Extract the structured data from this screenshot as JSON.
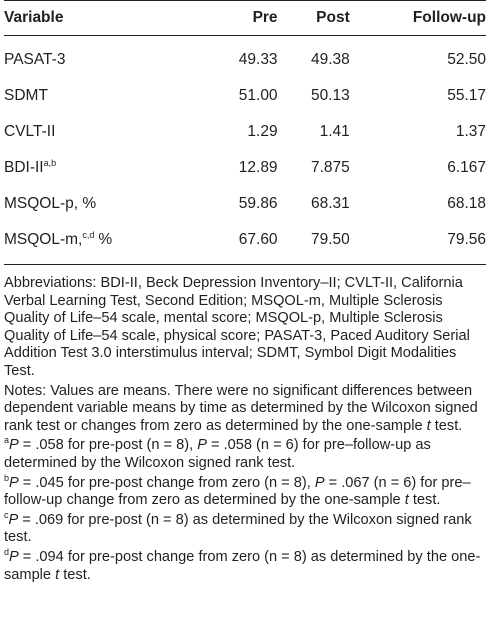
{
  "table": {
    "header": [
      "Variable",
      "Pre",
      "Post",
      "Follow-up"
    ],
    "rows": [
      {
        "variable": "PASAT-3",
        "values": [
          "49.33",
          "49.38",
          "52.50"
        ]
      },
      {
        "variable": "SDMT",
        "values": [
          "51.00",
          "50.13",
          "55.17"
        ]
      },
      {
        "variable": "CVLT-II",
        "values": [
          "1.29",
          "1.41",
          "1.37"
        ]
      },
      {
        "variable": "BDI-II",
        "sup": "a,b",
        "values": [
          "12.89",
          "7.875",
          "6.167"
        ]
      },
      {
        "variable": "MSQOL-p, %",
        "values": [
          "59.86",
          "68.31",
          "68.18"
        ]
      },
      {
        "variable": "MSQOL-m,",
        "sup": "c,d",
        "suffix": "%",
        "values": [
          "67.60",
          "79.50",
          "79.56"
        ]
      }
    ]
  },
  "footnotes": [
    {
      "segments": [
        "Abbreviations: BDI-II, Beck Depression Inventory–II; CVLT-II, California Verbal Learning Test, Second Edition; MSQOL-m, Multiple Sclerosis Quality of Life–54 scale, mental score; MSQOL-p, Multiple Sclerosis Quality of Life–54 scale, physical score; PASAT-3, Paced Auditory Serial Addition Test 3.0 interstimulus interval; SDMT, Symbol Digit Modalities Test."
      ]
    },
    {
      "segments": [
        "Notes: Values are means. There were no significant differences between dependent variable means by time as determined by the Wilcoxon signed rank test or changes from zero as determined by the one-sample ",
        {
          "italic": "t"
        },
        " test."
      ]
    },
    {
      "sup": "a",
      "segments": [
        {
          "italic": "P"
        },
        " = .058 for pre-post (n = 8), ",
        {
          "italic": "P"
        },
        " = .058 (n = 6) for pre–follow-up as determined by the Wilcoxon signed rank test."
      ]
    },
    {
      "sup": "b",
      "segments": [
        {
          "italic": "P"
        },
        " = .045 for pre-post change from zero (n = 8), ",
        {
          "italic": "P"
        },
        " = .067 (n = 6) for pre–follow-up change from zero as determined by the one-sample ",
        {
          "italic": "t"
        },
        " test."
      ]
    },
    {
      "sup": "c",
      "segments": [
        {
          "italic": "P"
        },
        " = .069 for pre-post (n = 8) as determined by the Wilcoxon signed rank test."
      ]
    },
    {
      "sup": "d",
      "segments": [
        {
          "italic": "P"
        },
        " = .094 for pre-post change from zero (n = 8) as determined by the one-sample ",
        {
          "italic": "t"
        },
        " test."
      ]
    }
  ]
}
